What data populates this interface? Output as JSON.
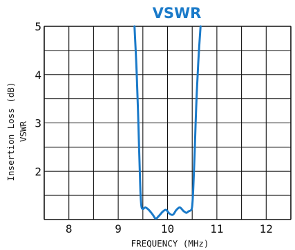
{
  "chart_data": {
    "type": "line",
    "title": "VSWR",
    "xlabel": "FREQUENCY (MHz)",
    "ylabel": "Insertion Loss (dB)",
    "ylabel2": "VSWR",
    "xlim": [
      7.5,
      12.5
    ],
    "ylim": [
      1.0,
      5.0
    ],
    "x_ticks": [
      "8",
      "9",
      "10",
      "11",
      "12"
    ],
    "y_ticks": [
      "5",
      "4",
      "3",
      "2"
    ],
    "grid": true,
    "series": [
      {
        "color": "#1a7ac9",
        "x": [
          9.33,
          9.38,
          9.42,
          9.45,
          9.47,
          9.5,
          9.55,
          9.62,
          9.7,
          9.76,
          9.83,
          9.9,
          9.97,
          10.04,
          10.11,
          10.18,
          10.25,
          10.32,
          10.38,
          10.43,
          10.48,
          10.5,
          10.52,
          10.55,
          10.58,
          10.62,
          10.67
        ],
        "y": [
          5.0,
          3.9,
          2.6,
          1.6,
          1.28,
          1.22,
          1.25,
          1.2,
          1.1,
          1.02,
          1.08,
          1.16,
          1.2,
          1.12,
          1.1,
          1.2,
          1.25,
          1.18,
          1.14,
          1.17,
          1.2,
          1.28,
          1.6,
          2.4,
          3.3,
          4.2,
          5.0
        ]
      }
    ]
  }
}
